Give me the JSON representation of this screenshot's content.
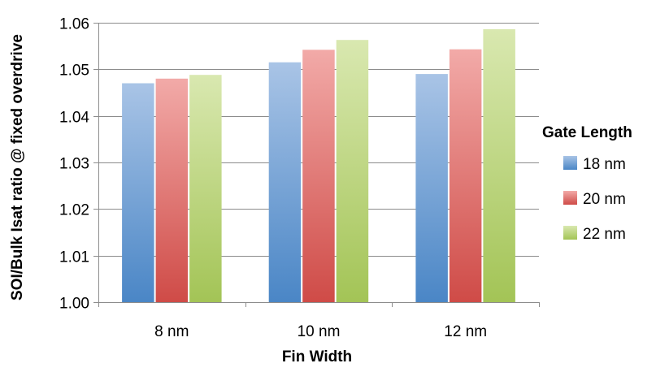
{
  "chart_data": {
    "type": "bar",
    "title": "",
    "xlabel": "Fin Width",
    "ylabel": "SOI/Bulk Isat ratio @ fixed overdrive",
    "categories": [
      "8 nm",
      "10 nm",
      "12 nm"
    ],
    "series": [
      {
        "name": "18 nm",
        "values": [
          1.047,
          1.0515,
          1.049
        ]
      },
      {
        "name": "20 nm",
        "values": [
          1.048,
          1.0542,
          1.0543
        ]
      },
      {
        "name": "22 nm",
        "values": [
          1.0488,
          1.0563,
          1.0586
        ]
      }
    ],
    "ylim": [
      1.0,
      1.06
    ],
    "yticks": [
      "1.00",
      "1.01",
      "1.02",
      "1.03",
      "1.04",
      "1.05",
      "1.06"
    ],
    "grid": true,
    "legend": {
      "title": "Gate Length",
      "position": "right"
    },
    "colors": {
      "series": [
        {
          "top": "#a9c4e6",
          "bottom": "#4a86c6"
        },
        {
          "top": "#f2aaa8",
          "bottom": "#cf4b47"
        },
        {
          "top": "#d9e8b0",
          "bottom": "#a3c456"
        }
      ],
      "grid": "#8c8c8c",
      "axis": "#8c8c8c"
    }
  }
}
